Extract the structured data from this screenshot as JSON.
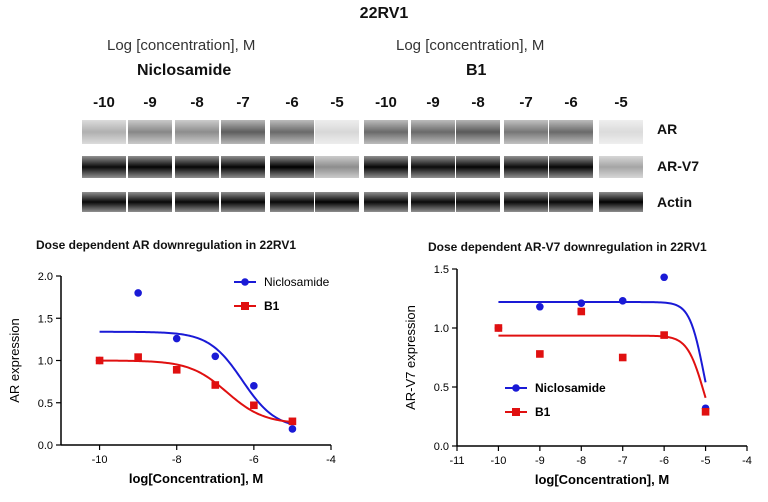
{
  "figure_title": "22RV1",
  "blot": {
    "groups": [
      {
        "log_label": "Log [concentration], M",
        "drug": "Niclosamide",
        "lanes": [
          "-10",
          "-9",
          "-8",
          "-7",
          "-6",
          "-5"
        ]
      },
      {
        "log_label": "Log [concentration], M",
        "drug": "B1",
        "lanes": [
          "-10",
          "-9",
          "-8",
          "-7",
          "-6",
          "-5"
        ]
      }
    ],
    "rows": [
      {
        "label": "AR",
        "intensity": [
          0.25,
          0.42,
          0.4,
          0.6,
          0.55,
          0.08,
          0.55,
          0.55,
          0.62,
          0.5,
          0.55,
          0.07
        ]
      },
      {
        "label": "AR-V7",
        "intensity": [
          0.95,
          0.98,
          0.97,
          0.98,
          1.0,
          0.4,
          0.97,
          0.95,
          0.98,
          0.95,
          0.97,
          0.3
        ]
      },
      {
        "label": "Actin",
        "intensity": [
          0.96,
          0.97,
          0.97,
          0.98,
          0.97,
          0.99,
          0.96,
          0.96,
          0.96,
          0.96,
          0.97,
          0.99
        ]
      }
    ]
  },
  "colors": {
    "niclosamide": "#1a1ad6",
    "b1": "#e01010"
  },
  "chart_data": [
    {
      "type": "scatter",
      "title": "Dose dependent AR downregulation in 22RV1",
      "xlabel": "log[Concentration], M",
      "ylabel": "AR expression",
      "xlim": [
        -11,
        -4
      ],
      "ylim": [
        0,
        2.0
      ],
      "xticks": [
        -10,
        -8,
        -6,
        -4
      ],
      "yticks": [
        0.0,
        0.5,
        1.0,
        1.5,
        2.0
      ],
      "ytick_labels": [
        "0.0",
        "0.5",
        "1.0",
        "1.5",
        "2.0"
      ],
      "legend_position": "top-right",
      "series": [
        {
          "name": "Niclosamide",
          "marker": "circle",
          "color": "#1a1ad6",
          "x": [
            -10,
            -9,
            -8,
            -7,
            -6,
            -5
          ],
          "y": [
            1.0,
            1.8,
            1.26,
            1.05,
            0.7,
            0.19
          ],
          "fit": {
            "top": 1.34,
            "bottom": 0.19,
            "logEC50": -6.3,
            "hill": 1.0
          }
        },
        {
          "name": "B1",
          "marker": "square",
          "color": "#e01010",
          "x": [
            -10,
            -9,
            -8,
            -7,
            -6,
            -5
          ],
          "y": [
            1.0,
            1.04,
            0.89,
            0.71,
            0.47,
            0.28
          ],
          "fit": {
            "top": 1.0,
            "bottom": 0.25,
            "logEC50": -6.7,
            "hill": 0.9
          }
        }
      ]
    },
    {
      "type": "scatter",
      "title": "Dose dependent AR-V7 downregulation in 22RV1",
      "xlabel": "log[Concentration], M",
      "ylabel": "AR-V7 expression",
      "xlim": [
        -11,
        -4
      ],
      "ylim": [
        0,
        1.5
      ],
      "xticks": [
        -11,
        -10,
        -9,
        -8,
        -7,
        -6,
        -5,
        -4
      ],
      "yticks": [
        0.0,
        0.5,
        1.0,
        1.5
      ],
      "ytick_labels": [
        "0.0",
        "0.5",
        "1.0",
        "1.5"
      ],
      "legend_position": "bottom-left",
      "series": [
        {
          "name": "Niclosamide",
          "marker": "circle",
          "color": "#1a1ad6",
          "x": [
            -10,
            -9,
            -8,
            -7,
            -6,
            -5
          ],
          "y": [
            1.0,
            1.18,
            1.21,
            1.23,
            1.43,
            0.32
          ],
          "fit": {
            "top": 1.22,
            "bottom": 0.0,
            "logEC50": -5.04,
            "hill": 2.5
          }
        },
        {
          "name": "B1",
          "marker": "square",
          "color": "#e01010",
          "x": [
            -10,
            -9,
            -8,
            -7,
            -6,
            -5
          ],
          "y": [
            1.0,
            0.78,
            1.14,
            0.75,
            0.94,
            0.29
          ],
          "fit": {
            "top": 0.935,
            "bottom": 0.0,
            "logEC50": -5.05,
            "hill": 2.2
          }
        }
      ]
    }
  ]
}
